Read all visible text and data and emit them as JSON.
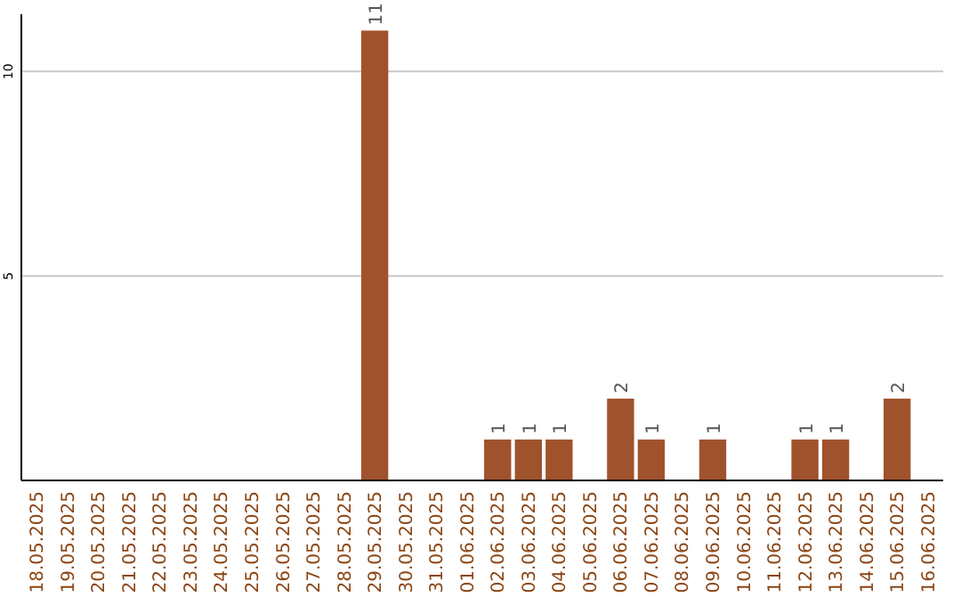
{
  "chart_data": {
    "type": "bar",
    "categories": [
      "18.05.2025",
      "19.05.2025",
      "20.05.2025",
      "21.05.2025",
      "22.05.2025",
      "23.05.2025",
      "24.05.2025",
      "25.05.2025",
      "26.05.2025",
      "27.05.2025",
      "28.05.2025",
      "29.05.2025",
      "30.05.2025",
      "31.05.2025",
      "01.06.2025",
      "02.06.2025",
      "03.06.2025",
      "04.06.2025",
      "05.06.2025",
      "06.06.2025",
      "07.06.2025",
      "08.06.2025",
      "09.06.2025",
      "10.06.2025",
      "11.06.2025",
      "12.06.2025",
      "13.06.2025",
      "14.06.2025",
      "15.06.2025",
      "16.06.2025"
    ],
    "values": [
      0,
      0,
      0,
      0,
      0,
      0,
      0,
      0,
      0,
      0,
      0,
      11,
      0,
      0,
      0,
      1,
      1,
      1,
      0,
      2,
      1,
      0,
      1,
      0,
      0,
      1,
      1,
      0,
      2,
      0
    ],
    "value_labels": [
      null,
      null,
      null,
      null,
      null,
      null,
      null,
      null,
      null,
      null,
      null,
      "11",
      null,
      null,
      null,
      "1",
      "1",
      "1",
      null,
      "2",
      "1",
      null,
      "1",
      null,
      null,
      "1",
      "1",
      null,
      "2",
      null
    ],
    "color": "#a0522d",
    "ylim": [
      0,
      11.4
    ],
    "yticks": [
      5,
      10
    ],
    "grid": "y"
  }
}
